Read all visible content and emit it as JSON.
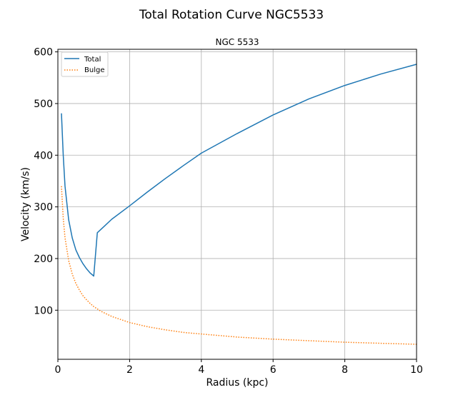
{
  "figure": {
    "suptitle": "Total Rotation Curve NGC5533"
  },
  "chart_data": {
    "type": "line",
    "title": "NGC 5533",
    "xlabel": "Radius (kpc)",
    "ylabel": "Velocity (km/s)",
    "xlim": [
      0,
      10
    ],
    "ylim": [
      5,
      605
    ],
    "xticks": [
      0,
      2,
      4,
      6,
      8,
      10
    ],
    "yticks": [
      100,
      200,
      300,
      400,
      500,
      600
    ],
    "grid": true,
    "legend_position": "upper-left",
    "series": [
      {
        "name": "Total",
        "color": "#1f77b4",
        "style": "solid",
        "x": [
          0.1,
          0.15,
          0.2,
          0.3,
          0.4,
          0.5,
          0.6,
          0.7,
          0.8,
          0.9,
          1.0,
          1.1,
          1.3,
          1.5,
          2.0,
          2.5,
          3.0,
          3.5,
          4.0,
          5.0,
          6.0,
          7.0,
          8.0,
          9.0,
          10.0
        ],
        "y": [
          481,
          400,
          340,
          275,
          240,
          217,
          202,
          190,
          180,
          172,
          166,
          250,
          263,
          276,
          302,
          329,
          355,
          380,
          404,
          442,
          478,
          509,
          535,
          557,
          576
        ]
      },
      {
        "name": "Bulge",
        "color": "#ff7f0e",
        "style": "dotted",
        "x": [
          0.1,
          0.15,
          0.2,
          0.3,
          0.4,
          0.5,
          0.6,
          0.7,
          0.8,
          0.9,
          1.0,
          1.2,
          1.5,
          2.0,
          2.5,
          3.0,
          3.5,
          4.0,
          5.0,
          6.0,
          7.0,
          8.0,
          9.0,
          10.0
        ],
        "y": [
          340,
          278,
          240,
          196,
          170,
          152,
          139,
          128,
          120,
          113,
          107,
          98,
          88,
          76,
          68,
          62,
          57,
          54,
          48,
          44,
          41,
          38,
          36,
          34
        ]
      }
    ]
  }
}
